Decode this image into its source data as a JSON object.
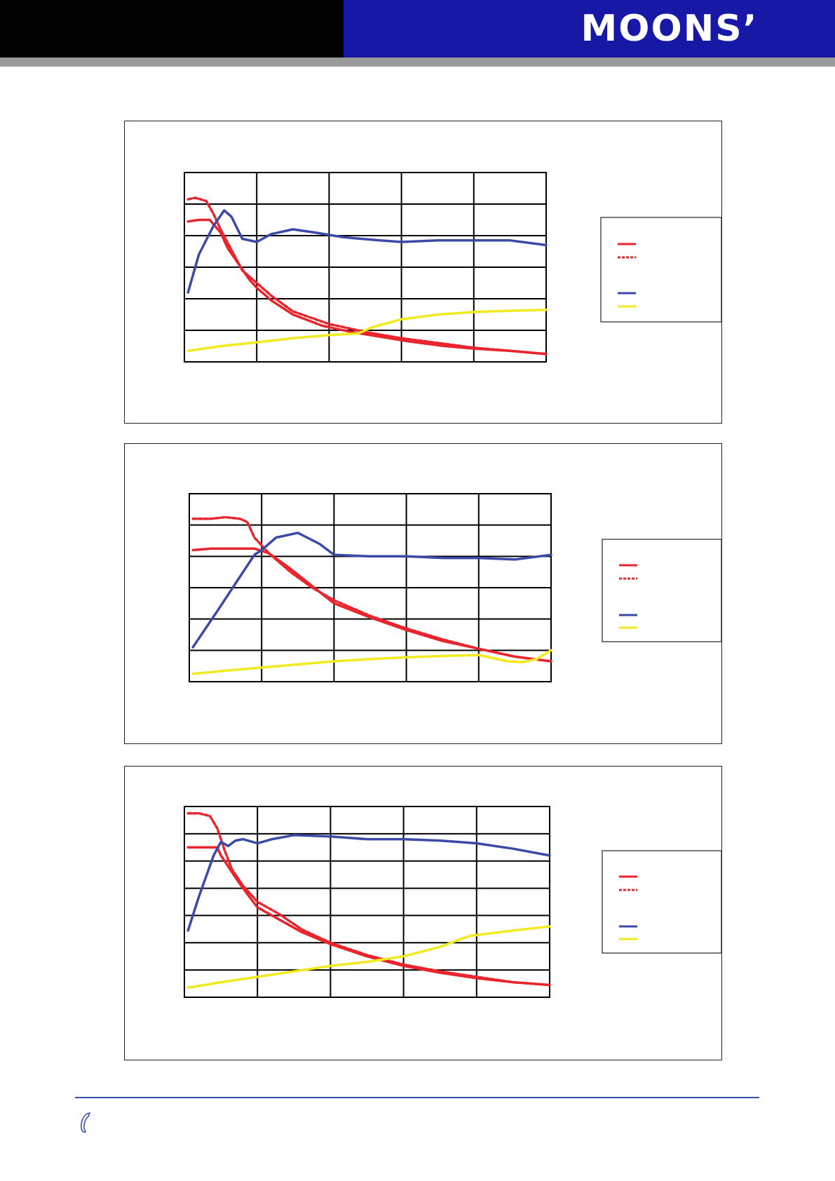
{
  "header": {
    "logo_text": "MOONS’",
    "colors": {
      "left_band": "#000000",
      "right_band": "#1818a6",
      "rule": "#9a9a9a"
    }
  },
  "series_styles": [
    {
      "color": "#e8242c",
      "dash": ""
    },
    {
      "color": "#e8242c",
      "dash": "5,3"
    },
    {
      "color": "#3b4aa6",
      "dash": ""
    },
    {
      "color": "#f2ea1e",
      "dash": ""
    }
  ],
  "chart_data": [
    {
      "type": "line",
      "grid": true,
      "legend_position": "right",
      "xlim": [
        0,
        5
      ],
      "ylim": [
        0,
        6
      ],
      "series": [
        {
          "x": [
            0.05,
            0.2,
            0.35,
            0.5,
            0.6,
            0.75,
            0.9,
            1.0,
            1.2,
            1.5,
            1.9,
            2.3,
            2.7,
            3.1,
            3.6,
            4.0,
            4.5,
            5.0
          ],
          "y": [
            4.45,
            4.5,
            4.5,
            4.1,
            3.6,
            3.1,
            2.6,
            2.35,
            1.95,
            1.5,
            1.15,
            0.95,
            0.8,
            0.65,
            0.5,
            0.42,
            0.35,
            0.25
          ]
        },
        {
          "x": [
            0.05,
            0.15,
            0.3,
            0.4,
            0.5,
            0.65,
            0.8,
            1.0,
            1.2,
            1.5,
            2.0,
            2.5,
            3.0,
            3.5,
            4.0,
            4.5,
            5.0
          ],
          "y": [
            5.15,
            5.2,
            5.1,
            4.7,
            4.2,
            3.55,
            2.9,
            2.5,
            2.1,
            1.6,
            1.2,
            0.95,
            0.75,
            0.6,
            0.45,
            0.35,
            0.25
          ]
        },
        {
          "x": [
            0.05,
            0.2,
            0.4,
            0.55,
            0.65,
            0.8,
            1.0,
            1.2,
            1.5,
            1.8,
            2.2,
            2.7,
            3.0,
            3.5,
            4.0,
            4.5,
            5.0
          ],
          "y": [
            2.2,
            3.4,
            4.3,
            4.8,
            4.6,
            3.9,
            3.8,
            4.05,
            4.2,
            4.1,
            3.95,
            3.85,
            3.8,
            3.85,
            3.85,
            3.85,
            3.7
          ]
        },
        {
          "x": [
            0.05,
            0.5,
            1.0,
            1.5,
            2.0,
            2.4,
            2.6,
            3.0,
            3.5,
            4.0,
            4.5,
            5.0
          ],
          "y": [
            0.35,
            0.5,
            0.62,
            0.75,
            0.85,
            0.9,
            1.1,
            1.35,
            1.5,
            1.58,
            1.62,
            1.65
          ]
        }
      ]
    },
    {
      "type": "line",
      "grid": true,
      "legend_position": "right",
      "xlim": [
        0,
        5
      ],
      "ylim": [
        0,
        6
      ],
      "series": [
        {
          "x": [
            0.05,
            0.3,
            0.6,
            0.9,
            1.1,
            1.4,
            1.7,
            2.0,
            2.5,
            3.0,
            3.5,
            4.0,
            4.5,
            5.0
          ],
          "y": [
            4.2,
            4.25,
            4.25,
            4.25,
            4.1,
            3.6,
            3.05,
            2.5,
            2.05,
            1.65,
            1.3,
            1.05,
            0.8,
            0.65
          ]
        },
        {
          "x": [
            0.05,
            0.3,
            0.5,
            0.7,
            0.8,
            0.9,
            1.1,
            1.4,
            1.7,
            2.0,
            2.5,
            3.0,
            3.5,
            4.0,
            4.5,
            5.0
          ],
          "y": [
            5.2,
            5.2,
            5.25,
            5.2,
            5.1,
            4.6,
            4.1,
            3.5,
            3.0,
            2.6,
            2.1,
            1.7,
            1.35,
            1.05,
            0.8,
            0.65
          ]
        },
        {
          "x": [
            0.05,
            0.4,
            0.8,
            0.9,
            1.0,
            1.2,
            1.5,
            1.8,
            2.0,
            2.5,
            3.0,
            3.5,
            4.0,
            4.5,
            5.0
          ],
          "y": [
            1.1,
            2.3,
            3.7,
            4.05,
            4.2,
            4.6,
            4.75,
            4.4,
            4.05,
            4.0,
            4.0,
            3.95,
            3.95,
            3.9,
            4.05
          ]
        },
        {
          "x": [
            0.05,
            0.5,
            1.0,
            1.5,
            2.0,
            2.5,
            3.0,
            3.5,
            4.0,
            4.2,
            4.4,
            4.6,
            4.8,
            5.0
          ],
          "y": [
            0.25,
            0.35,
            0.45,
            0.55,
            0.65,
            0.72,
            0.78,
            0.82,
            0.85,
            0.75,
            0.65,
            0.62,
            0.72,
            1.0
          ]
        }
      ]
    },
    {
      "type": "line",
      "grid": true,
      "legend_position": "right",
      "xlim": [
        0,
        5
      ],
      "ylim": [
        0,
        7
      ],
      "series": [
        {
          "x": [
            0.05,
            0.2,
            0.45,
            0.5,
            0.6,
            0.75,
            0.9,
            1.0,
            1.3,
            1.6,
            2.0,
            2.5,
            3.0,
            3.5,
            4.0,
            4.5,
            5.0
          ],
          "y": [
            5.5,
            5.5,
            5.5,
            5.2,
            4.8,
            4.2,
            3.65,
            3.3,
            2.85,
            2.4,
            1.95,
            1.5,
            1.15,
            0.9,
            0.7,
            0.55,
            0.45
          ]
        },
        {
          "x": [
            0.05,
            0.2,
            0.35,
            0.45,
            0.55,
            0.65,
            0.8,
            1.0,
            1.3,
            1.6,
            2.0,
            2.5,
            3.0,
            3.5,
            4.0,
            4.5,
            5.0
          ],
          "y": [
            6.75,
            6.75,
            6.65,
            6.2,
            5.4,
            4.7,
            4.1,
            3.5,
            3.05,
            2.5,
            2.0,
            1.55,
            1.2,
            0.95,
            0.75,
            0.55,
            0.45
          ]
        },
        {
          "x": [
            0.05,
            0.2,
            0.4,
            0.5,
            0.6,
            0.7,
            0.8,
            1.0,
            1.2,
            1.5,
            2.0,
            2.5,
            3.0,
            3.5,
            4.0,
            4.5,
            5.0
          ],
          "y": [
            2.45,
            3.7,
            5.2,
            5.7,
            5.55,
            5.75,
            5.8,
            5.65,
            5.8,
            5.95,
            5.9,
            5.8,
            5.8,
            5.75,
            5.65,
            5.45,
            5.2
          ]
        },
        {
          "x": [
            0.05,
            0.5,
            1.0,
            1.5,
            2.0,
            2.5,
            3.0,
            3.5,
            3.9,
            4.2,
            4.5,
            5.0
          ],
          "y": [
            0.35,
            0.55,
            0.75,
            0.95,
            1.15,
            1.3,
            1.5,
            1.85,
            2.25,
            2.35,
            2.45,
            2.6
          ]
        }
      ]
    }
  ]
}
